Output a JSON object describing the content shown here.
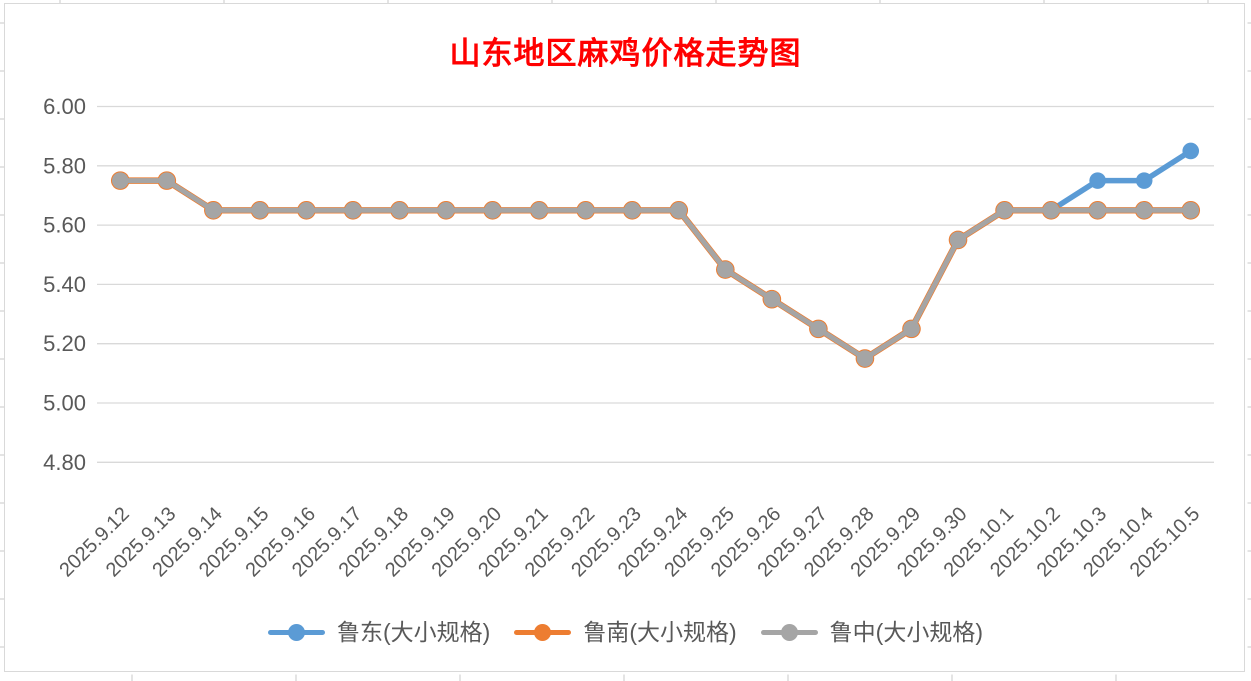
{
  "chart": {
    "title": "山东地区麻鸡价格走势图",
    "title_color": "#FF0000"
  },
  "chart_data": {
    "type": "line",
    "title": "山东地区麻鸡价格走势图",
    "xlabel": "",
    "ylabel": "",
    "ylim": [
      4.8,
      6.0
    ],
    "ytick_step": 0.2,
    "yticks": [
      "6.00",
      "5.80",
      "5.60",
      "5.40",
      "5.20",
      "5.00",
      "4.80"
    ],
    "grid": true,
    "legend_position": "bottom",
    "axis_text_color": "#595959",
    "gridline_color": "#D9D9D9",
    "categories": [
      "2025.9.12",
      "2025.9.13",
      "2025.9.14",
      "2025.9.15",
      "2025.9.16",
      "2025.9.17",
      "2025.9.18",
      "2025.9.19",
      "2025.9.20",
      "2025.9.21",
      "2025.9.22",
      "2025.9.23",
      "2025.9.24",
      "2025.9.25",
      "2025.9.26",
      "2025.9.27",
      "2025.9.28",
      "2025.9.29",
      "2025.9.30",
      "2025.10.1",
      "2025.10.2",
      "2025.10.3",
      "2025.10.4",
      "2025.10.5"
    ],
    "series": [
      {
        "name": "鲁东(大小规格)",
        "key": "ludong",
        "color": "#5B9BD5",
        "values": [
          5.75,
          5.75,
          5.65,
          5.65,
          5.65,
          5.65,
          5.65,
          5.65,
          5.65,
          5.65,
          5.65,
          5.65,
          5.65,
          5.45,
          5.35,
          5.25,
          5.15,
          5.25,
          5.55,
          5.65,
          5.65,
          5.75,
          5.75,
          5.85
        ]
      },
      {
        "name": "鲁南(大小规格)",
        "key": "lunan",
        "color": "#ED7D31",
        "values": [
          5.75,
          5.75,
          5.65,
          5.65,
          5.65,
          5.65,
          5.65,
          5.65,
          5.65,
          5.65,
          5.65,
          5.65,
          5.65,
          5.45,
          5.35,
          5.25,
          5.15,
          5.25,
          5.55,
          5.65,
          5.65,
          5.65,
          5.65,
          5.65
        ]
      },
      {
        "name": "鲁中(大小规格)",
        "key": "luzhong",
        "color": "#A5A5A5",
        "values": [
          5.75,
          5.75,
          5.65,
          5.65,
          5.65,
          5.65,
          5.65,
          5.65,
          5.65,
          5.65,
          5.65,
          5.65,
          5.65,
          5.45,
          5.35,
          5.25,
          5.15,
          5.25,
          5.55,
          5.65,
          5.65,
          5.65,
          5.65,
          5.65
        ]
      }
    ]
  }
}
